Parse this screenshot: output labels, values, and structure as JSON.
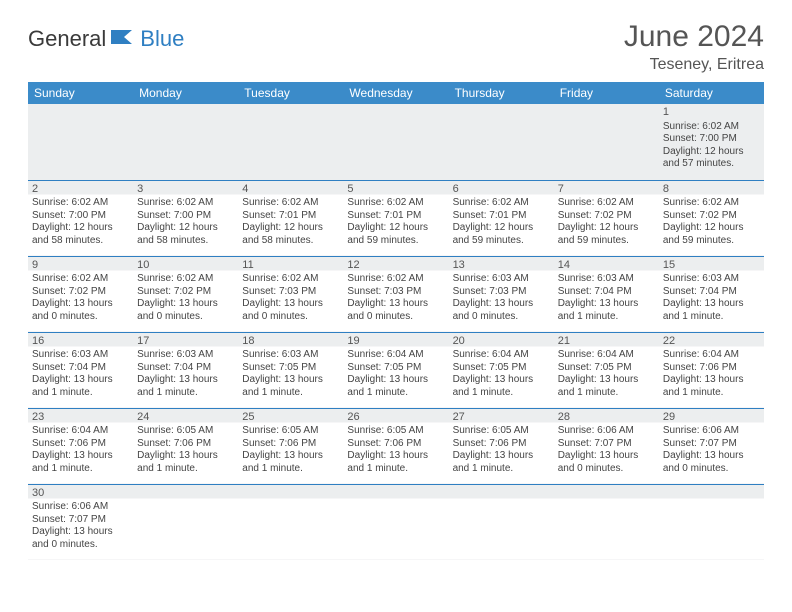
{
  "logo": {
    "part1": "General",
    "part2": "Blue"
  },
  "title": "June 2024",
  "location": "Teseney, Eritrea",
  "colors": {
    "header_bg": "#3b8bc9",
    "header_text": "#ffffff",
    "accent": "#2f7fc2",
    "shaded_bg": "#eceeef",
    "text": "#444444"
  },
  "weekdays": [
    "Sunday",
    "Monday",
    "Tuesday",
    "Wednesday",
    "Thursday",
    "Friday",
    "Saturday"
  ],
  "weeks": [
    [
      null,
      null,
      null,
      null,
      null,
      null,
      {
        "n": "1",
        "sr": "Sunrise: 6:02 AM",
        "ss": "Sunset: 7:00 PM",
        "dl": "Daylight: 12 hours and 57 minutes."
      }
    ],
    [
      {
        "n": "2",
        "sr": "Sunrise: 6:02 AM",
        "ss": "Sunset: 7:00 PM",
        "dl": "Daylight: 12 hours and 58 minutes."
      },
      {
        "n": "3",
        "sr": "Sunrise: 6:02 AM",
        "ss": "Sunset: 7:00 PM",
        "dl": "Daylight: 12 hours and 58 minutes."
      },
      {
        "n": "4",
        "sr": "Sunrise: 6:02 AM",
        "ss": "Sunset: 7:01 PM",
        "dl": "Daylight: 12 hours and 58 minutes."
      },
      {
        "n": "5",
        "sr": "Sunrise: 6:02 AM",
        "ss": "Sunset: 7:01 PM",
        "dl": "Daylight: 12 hours and 59 minutes."
      },
      {
        "n": "6",
        "sr": "Sunrise: 6:02 AM",
        "ss": "Sunset: 7:01 PM",
        "dl": "Daylight: 12 hours and 59 minutes."
      },
      {
        "n": "7",
        "sr": "Sunrise: 6:02 AM",
        "ss": "Sunset: 7:02 PM",
        "dl": "Daylight: 12 hours and 59 minutes."
      },
      {
        "n": "8",
        "sr": "Sunrise: 6:02 AM",
        "ss": "Sunset: 7:02 PM",
        "dl": "Daylight: 12 hours and 59 minutes."
      }
    ],
    [
      {
        "n": "9",
        "sr": "Sunrise: 6:02 AM",
        "ss": "Sunset: 7:02 PM",
        "dl": "Daylight: 13 hours and 0 minutes."
      },
      {
        "n": "10",
        "sr": "Sunrise: 6:02 AM",
        "ss": "Sunset: 7:02 PM",
        "dl": "Daylight: 13 hours and 0 minutes."
      },
      {
        "n": "11",
        "sr": "Sunrise: 6:02 AM",
        "ss": "Sunset: 7:03 PM",
        "dl": "Daylight: 13 hours and 0 minutes."
      },
      {
        "n": "12",
        "sr": "Sunrise: 6:02 AM",
        "ss": "Sunset: 7:03 PM",
        "dl": "Daylight: 13 hours and 0 minutes."
      },
      {
        "n": "13",
        "sr": "Sunrise: 6:03 AM",
        "ss": "Sunset: 7:03 PM",
        "dl": "Daylight: 13 hours and 0 minutes."
      },
      {
        "n": "14",
        "sr": "Sunrise: 6:03 AM",
        "ss": "Sunset: 7:04 PM",
        "dl": "Daylight: 13 hours and 1 minute."
      },
      {
        "n": "15",
        "sr": "Sunrise: 6:03 AM",
        "ss": "Sunset: 7:04 PM",
        "dl": "Daylight: 13 hours and 1 minute."
      }
    ],
    [
      {
        "n": "16",
        "sr": "Sunrise: 6:03 AM",
        "ss": "Sunset: 7:04 PM",
        "dl": "Daylight: 13 hours and 1 minute."
      },
      {
        "n": "17",
        "sr": "Sunrise: 6:03 AM",
        "ss": "Sunset: 7:04 PM",
        "dl": "Daylight: 13 hours and 1 minute."
      },
      {
        "n": "18",
        "sr": "Sunrise: 6:03 AM",
        "ss": "Sunset: 7:05 PM",
        "dl": "Daylight: 13 hours and 1 minute."
      },
      {
        "n": "19",
        "sr": "Sunrise: 6:04 AM",
        "ss": "Sunset: 7:05 PM",
        "dl": "Daylight: 13 hours and 1 minute."
      },
      {
        "n": "20",
        "sr": "Sunrise: 6:04 AM",
        "ss": "Sunset: 7:05 PM",
        "dl": "Daylight: 13 hours and 1 minute."
      },
      {
        "n": "21",
        "sr": "Sunrise: 6:04 AM",
        "ss": "Sunset: 7:05 PM",
        "dl": "Daylight: 13 hours and 1 minute."
      },
      {
        "n": "22",
        "sr": "Sunrise: 6:04 AM",
        "ss": "Sunset: 7:06 PM",
        "dl": "Daylight: 13 hours and 1 minute."
      }
    ],
    [
      {
        "n": "23",
        "sr": "Sunrise: 6:04 AM",
        "ss": "Sunset: 7:06 PM",
        "dl": "Daylight: 13 hours and 1 minute."
      },
      {
        "n": "24",
        "sr": "Sunrise: 6:05 AM",
        "ss": "Sunset: 7:06 PM",
        "dl": "Daylight: 13 hours and 1 minute."
      },
      {
        "n": "25",
        "sr": "Sunrise: 6:05 AM",
        "ss": "Sunset: 7:06 PM",
        "dl": "Daylight: 13 hours and 1 minute."
      },
      {
        "n": "26",
        "sr": "Sunrise: 6:05 AM",
        "ss": "Sunset: 7:06 PM",
        "dl": "Daylight: 13 hours and 1 minute."
      },
      {
        "n": "27",
        "sr": "Sunrise: 6:05 AM",
        "ss": "Sunset: 7:06 PM",
        "dl": "Daylight: 13 hours and 1 minute."
      },
      {
        "n": "28",
        "sr": "Sunrise: 6:06 AM",
        "ss": "Sunset: 7:07 PM",
        "dl": "Daylight: 13 hours and 0 minutes."
      },
      {
        "n": "29",
        "sr": "Sunrise: 6:06 AM",
        "ss": "Sunset: 7:07 PM",
        "dl": "Daylight: 13 hours and 0 minutes."
      }
    ],
    [
      {
        "n": "30",
        "sr": "Sunrise: 6:06 AM",
        "ss": "Sunset: 7:07 PM",
        "dl": "Daylight: 13 hours and 0 minutes."
      },
      null,
      null,
      null,
      null,
      null,
      null
    ]
  ]
}
